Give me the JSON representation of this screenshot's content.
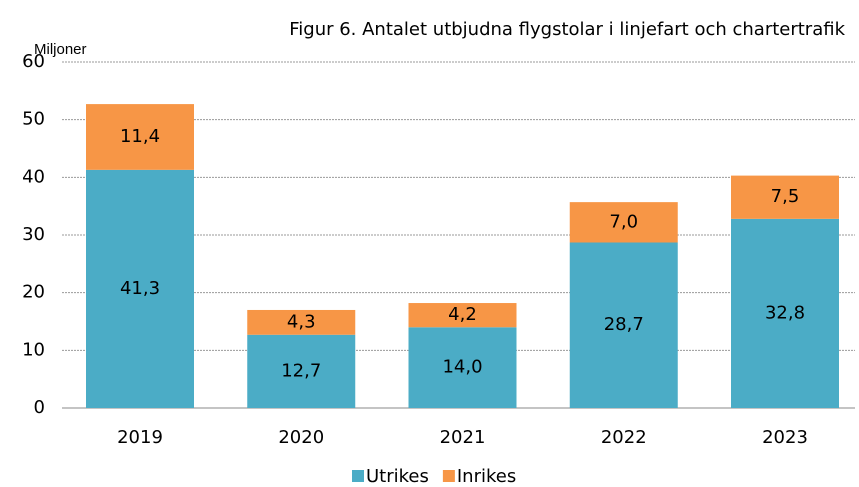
{
  "chart_data": {
    "type": "stacked_bar",
    "title": "Figur 6. Antalet utbjudna flygstolar i linjefart och chartertrafik",
    "y_axis_label": "Miljoner",
    "categories": [
      "2019",
      "2020",
      "2021",
      "2022",
      "2023"
    ],
    "series": [
      {
        "name": "Utrikes",
        "color": "#4bacc6",
        "values": [
          41.3,
          12.7,
          14.0,
          28.7,
          32.8
        ],
        "value_labels": [
          "41,3",
          "12,7",
          "14,0",
          "28,7",
          "32,8"
        ]
      },
      {
        "name": "Inrikes",
        "color": "#f79646",
        "values": [
          11.4,
          4.3,
          4.2,
          7.0,
          7.5
        ],
        "value_labels": [
          "11,4",
          "4,3",
          "4,2",
          "7,0",
          "7,5"
        ]
      }
    ],
    "ylim": [
      0,
      60
    ],
    "yticks": [
      0,
      10,
      20,
      30,
      40,
      50,
      60
    ],
    "grid": true,
    "legend": "bottom"
  }
}
